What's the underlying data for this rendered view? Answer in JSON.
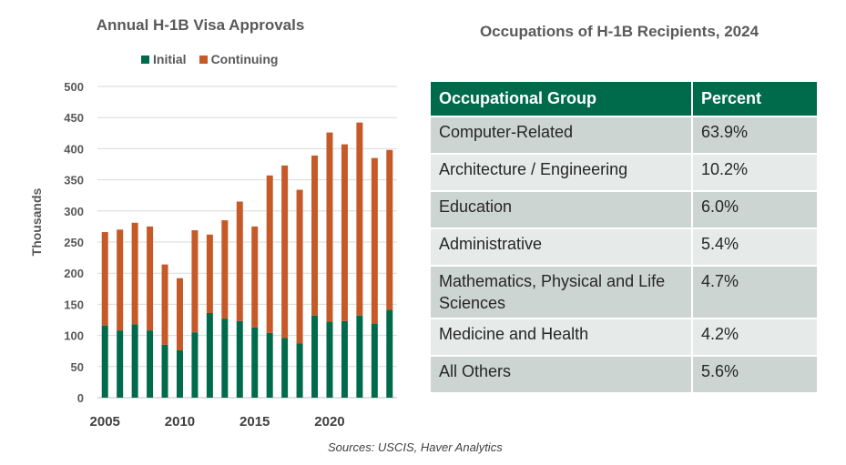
{
  "chart_data": {
    "type": "bar",
    "stacked": true,
    "title": "Annual H-1B Visa Approvals",
    "xlabel": "",
    "ylabel": "Thousands",
    "ylim": [
      0,
      500
    ],
    "yticks": [
      "0",
      "50",
      "100",
      "150",
      "200",
      "250",
      "300",
      "350",
      "400",
      "450",
      "500"
    ],
    "xtick_labels": [
      "2005",
      "2010",
      "2015",
      "2020"
    ],
    "grid": true,
    "legend_placement": "top",
    "categories": [
      "2005",
      "2006",
      "2007",
      "2008",
      "2009",
      "2010",
      "2011",
      "2012",
      "2013",
      "2014",
      "2015",
      "2016",
      "2017",
      "2018",
      "2019",
      "2020",
      "2021",
      "2022",
      "2023",
      "2024"
    ],
    "series": [
      {
        "name": "Initial",
        "color": "#006b4a",
        "values": [
          116,
          108,
          118,
          108,
          85,
          76,
          105,
          136,
          127,
          123,
          113,
          104,
          96,
          87,
          132,
          122,
          123,
          132,
          119,
          141
        ]
      },
      {
        "name": "Continuing",
        "color": "#c55a28",
        "values": [
          150,
          162,
          163,
          167,
          129,
          116,
          164,
          126,
          158,
          192,
          162,
          253,
          277,
          247,
          257,
          304,
          284,
          310,
          266,
          257
        ]
      }
    ]
  },
  "source": "Sources: USCIS, Haver Analytics",
  "table": {
    "title": "Occupations of H-1B Recipients, 2024",
    "headers": [
      "Occupational Group",
      "Percent"
    ],
    "rows": [
      [
        "Computer-Related",
        "63.9%"
      ],
      [
        "Architecture / Engineering",
        "10.2%"
      ],
      [
        "Education",
        "6.0%"
      ],
      [
        "Administrative",
        "5.4%"
      ],
      [
        "Mathematics, Physical and Life Sciences",
        "4.7%"
      ],
      [
        "Medicine and Health",
        "4.2%"
      ],
      [
        "All Others",
        "5.6%"
      ]
    ]
  }
}
